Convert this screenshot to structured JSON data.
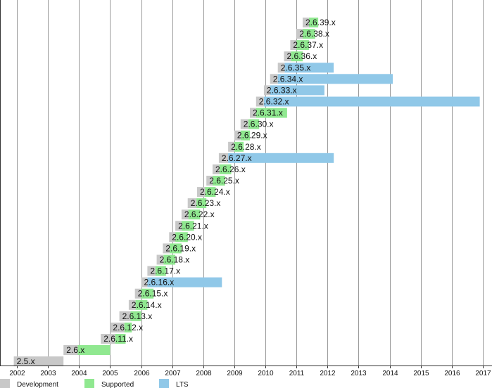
{
  "chart_data": {
    "type": "bar",
    "subtype": "gantt-timeline",
    "x_ticks": [
      "2002",
      "2003",
      "2004",
      "2005",
      "2006",
      "2007",
      "2008",
      "2009",
      "2010",
      "2011",
      "2012",
      "2013",
      "2014",
      "2015",
      "2016",
      "2017"
    ],
    "xlim": [
      2002.0,
      2017.0
    ],
    "grid": true,
    "legend": {
      "placement": "bottom",
      "items": [
        {
          "key": "dev",
          "label": "Development",
          "color": "#c8c8c8"
        },
        {
          "key": "sup",
          "label": "Supported",
          "color": "#90e890"
        },
        {
          "key": "lts",
          "label": "LTS",
          "color": "#90c8e8"
        }
      ]
    },
    "series": [
      {
        "name": "2.5.x",
        "dev": [
          2001.9,
          2003.5
        ]
      },
      {
        "name": "2.6.x",
        "dev": [
          2003.5,
          2003.96
        ],
        "sup": [
          2003.96,
          2005.0
        ]
      },
      {
        "name": "2.6.11.x",
        "dev": [
          2004.7,
          2005.17
        ],
        "sup": [
          2005.17,
          2005.5
        ]
      },
      {
        "name": "2.6.12.x",
        "dev": [
          2005.0,
          2005.46
        ],
        "sup": [
          2005.46,
          2005.7
        ]
      },
      {
        "name": "2.6.13.x",
        "dev": [
          2005.3,
          2005.66
        ],
        "sup": [
          2005.66,
          2006.0
        ]
      },
      {
        "name": "2.6.14.x",
        "dev": [
          2005.6,
          2005.82
        ],
        "sup": [
          2005.82,
          2006.2
        ]
      },
      {
        "name": "2.6.15.x",
        "dev": [
          2005.8,
          2006.0
        ],
        "sup": [
          2006.0,
          2006.4
        ]
      },
      {
        "name": "2.6.16.x",
        "dev": [
          2006.0,
          2006.2
        ],
        "lts": [
          2006.2,
          2008.6
        ]
      },
      {
        "name": "2.6.17.x",
        "dev": [
          2006.2,
          2006.46
        ],
        "sup": [
          2006.46,
          2006.8
        ]
      },
      {
        "name": "2.6.18.x",
        "dev": [
          2006.5,
          2006.72
        ],
        "sup": [
          2006.72,
          2007.1
        ]
      },
      {
        "name": "2.6.19.x",
        "dev": [
          2006.7,
          2006.92
        ],
        "sup": [
          2006.92,
          2007.3
        ]
      },
      {
        "name": "2.6.20.x",
        "dev": [
          2006.9,
          2007.1
        ],
        "sup": [
          2007.1,
          2007.5
        ]
      },
      {
        "name": "2.6.21.x",
        "dev": [
          2007.1,
          2007.3
        ],
        "sup": [
          2007.3,
          2007.7
        ]
      },
      {
        "name": "2.6.22.x",
        "dev": [
          2007.3,
          2007.52
        ],
        "sup": [
          2007.52,
          2007.9
        ]
      },
      {
        "name": "2.6.23.x",
        "dev": [
          2007.5,
          2007.78
        ],
        "sup": [
          2007.78,
          2008.1
        ]
      },
      {
        "name": "2.6.24.x",
        "dev": [
          2007.8,
          2008.06
        ],
        "sup": [
          2008.06,
          2008.4
        ]
      },
      {
        "name": "2.6.25.x",
        "dev": [
          2008.1,
          2008.3
        ],
        "sup": [
          2008.3,
          2008.7
        ]
      },
      {
        "name": "2.6.26.x",
        "dev": [
          2008.3,
          2008.52
        ],
        "sup": [
          2008.52,
          2008.9
        ]
      },
      {
        "name": "2.6.27.x",
        "dev": [
          2008.5,
          2008.8
        ],
        "lts": [
          2008.8,
          2012.2
        ]
      },
      {
        "name": "2.6.28.x",
        "dev": [
          2008.8,
          2009.0
        ],
        "sup": [
          2009.0,
          2009.3
        ]
      },
      {
        "name": "2.6.29.x",
        "dev": [
          2009.0,
          2009.2
        ],
        "sup": [
          2009.2,
          2009.5
        ]
      },
      {
        "name": "2.6.30.x",
        "dev": [
          2009.2,
          2009.45
        ],
        "sup": [
          2009.45,
          2009.8
        ]
      },
      {
        "name": "2.6.31.x",
        "dev": [
          2009.5,
          2009.7
        ],
        "sup": [
          2009.7,
          2010.7
        ]
      },
      {
        "name": "2.6.32.x",
        "dev": [
          2009.7,
          2009.95
        ],
        "lts": [
          2009.95,
          2016.9
        ]
      },
      {
        "name": "2.6.33.x",
        "dev": [
          2009.95,
          2010.15
        ],
        "lts": [
          2010.15,
          2011.9
        ]
      },
      {
        "name": "2.6.34.x",
        "dev": [
          2010.15,
          2010.4
        ],
        "lts": [
          2010.4,
          2014.1
        ]
      },
      {
        "name": "2.6.35.x",
        "dev": [
          2010.4,
          2010.62
        ],
        "lts": [
          2010.62,
          2012.2
        ]
      },
      {
        "name": "2.6.36.x",
        "dev": [
          2010.6,
          2010.82
        ],
        "sup": [
          2010.82,
          2011.2
        ]
      },
      {
        "name": "2.6.37.x",
        "dev": [
          2010.8,
          2011.0
        ],
        "sup": [
          2011.0,
          2011.4
        ]
      },
      {
        "name": "2.6.38.x",
        "dev": [
          2011.0,
          2011.2
        ],
        "sup": [
          2011.2,
          2011.6
        ]
      },
      {
        "name": "2.6.39.x",
        "dev": [
          2011.2,
          2011.4
        ],
        "sup": [
          2011.4,
          2011.7
        ]
      }
    ]
  }
}
